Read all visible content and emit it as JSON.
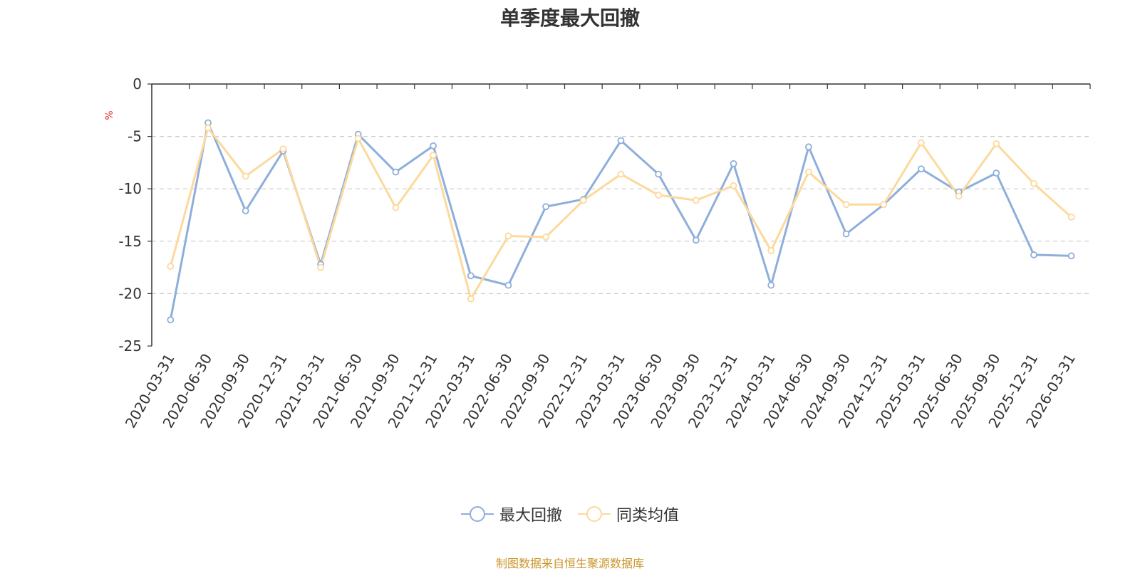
{
  "page": {
    "source_note": "制图数据来自恒生聚源数据库"
  },
  "chart_data": {
    "type": "line",
    "title": "单季度最大回撤",
    "ylabel": "%",
    "xlabel": "",
    "ylim": [
      -25,
      0
    ],
    "yticks": [
      0,
      -5,
      -10,
      -15,
      -20,
      -25
    ],
    "grid": true,
    "legend_position": "bottom-center",
    "categories": [
      "2020-03-31",
      "2020-06-30",
      "2020-09-30",
      "2020-12-31",
      "2021-03-31",
      "2021-06-30",
      "2021-09-30",
      "2021-12-31",
      "2022-03-31",
      "2022-06-30",
      "2022-09-30",
      "2022-12-31",
      "2023-03-31",
      "2023-06-30",
      "2023-09-30",
      "2023-12-31",
      "2024-03-31",
      "2024-06-30",
      "2024-09-30",
      "2024-12-31",
      "2025-03-31",
      "2025-06-30",
      "2025-09-30",
      "2025-12-31",
      "2026-03-31"
    ],
    "series": [
      {
        "name": "最大回撤",
        "color": "#8eaedb",
        "values": [
          -22.5,
          -3.7,
          -12.1,
          -6.4,
          -17.2,
          -4.8,
          -8.4,
          -5.9,
          -18.3,
          -19.2,
          -11.7,
          -11.0,
          -5.4,
          -8.6,
          -14.9,
          -7.6,
          -19.2,
          -6.0,
          -14.3,
          -11.5,
          -8.1,
          -10.3,
          -8.5,
          -16.3,
          -16.4
        ]
      },
      {
        "name": "同类均值",
        "color": "#fcd99c",
        "values": [
          -17.4,
          -4.2,
          -8.8,
          -6.2,
          -17.5,
          -5.2,
          -11.8,
          -6.8,
          -20.5,
          -14.5,
          -14.6,
          -11.1,
          -8.6,
          -10.6,
          -11.1,
          -9.7,
          -15.9,
          -8.4,
          -11.5,
          -11.5,
          -5.6,
          -10.7,
          -5.7,
          -9.5,
          -12.7
        ]
      }
    ]
  }
}
